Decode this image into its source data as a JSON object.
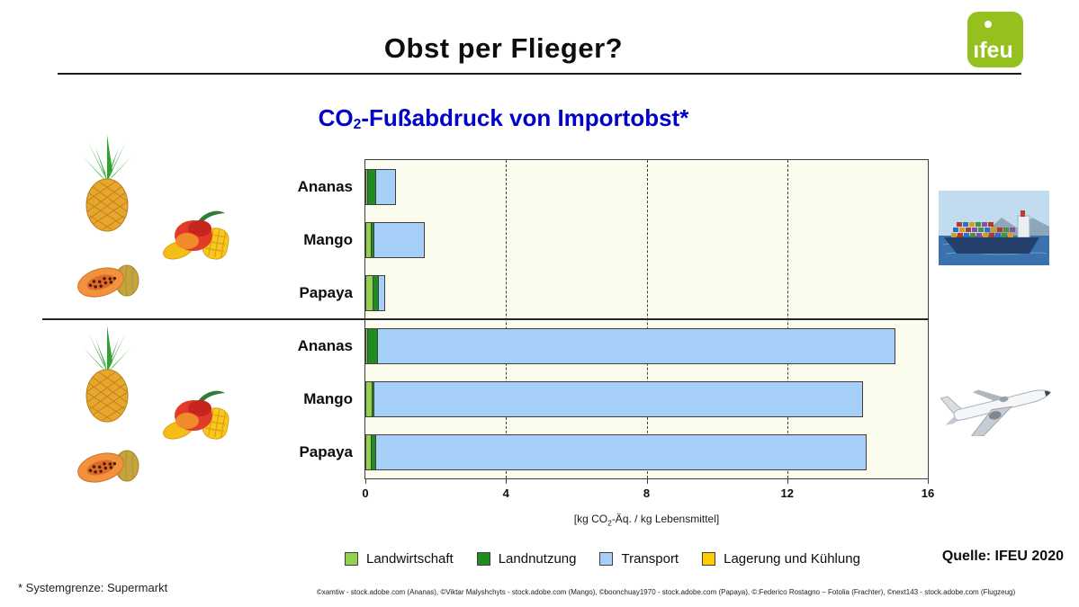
{
  "header": {
    "title": "Obst per Flieger?",
    "logo": {
      "text": "ifeu",
      "color": "#94C11E"
    }
  },
  "chart_title": {
    "pre": "CO",
    "sub": "2",
    "post": "-Fußabdruck von Importobst",
    "star": "*",
    "color": "#0000C8"
  },
  "chart_data": {
    "type": "bar",
    "orientation": "horizontal",
    "stacked": true,
    "title": "CO2-Fußabdruck von Importobst*",
    "xlabel": "[kg CO2-Äq. / kg Lebensmittel]",
    "xlabel_parts": {
      "pre": "[kg CO",
      "sub": "2",
      "post": "-Äq. / kg Lebensmittel]"
    },
    "xlim": [
      0,
      16
    ],
    "xticks": [
      "0",
      "4",
      "8",
      "12",
      "16"
    ],
    "gridlines_at": [
      4,
      8,
      12
    ],
    "grid_style": "dashed-vertical",
    "legend_position": "bottom",
    "plot_bg": "#FCFCEE",
    "series_legend": [
      {
        "name": "Landwirtschaft",
        "color": "#92D050",
        "border": "#3F3F3F"
      },
      {
        "name": "Landnutzung",
        "color": "#1E8C1E",
        "border": "#3F3F3F"
      },
      {
        "name": "Transport",
        "color": "#A6CFF7",
        "border": "#3F3F3F"
      },
      {
        "name": "Lagerung und Kühlung",
        "color": "#FFCC00",
        "border": "#3F3F3F"
      }
    ],
    "groups": [
      {
        "transport_icon": "container-ship",
        "bars": [
          {
            "label": "Ananas",
            "values": [
              0.05,
              0.25,
              0.6,
              0
            ]
          },
          {
            "label": "Mango",
            "values": [
              0.18,
              0.1,
              1.45,
              0
            ]
          },
          {
            "label": "Papaya",
            "values": [
              0.23,
              0.17,
              0.22,
              0
            ]
          }
        ]
      },
      {
        "transport_icon": "airplane",
        "bars": [
          {
            "label": "Ananas",
            "values": [
              0.05,
              0.3,
              14.75,
              0
            ]
          },
          {
            "label": "Mango",
            "values": [
              0.2,
              0.08,
              13.92,
              0
            ]
          },
          {
            "label": "Papaya",
            "values": [
              0.18,
              0.14,
              13.98,
              0
            ]
          }
        ]
      }
    ]
  },
  "footer": {
    "source": "Quelle: IFEU 2020",
    "footnote": "* Systemgrenze: Supermarkt",
    "credits": "©xamtiw - stock.adobe.com (Ananas), ©Viktar Malyshchyts - stock.adobe.com (Mango), ©boonchuay1970 - stock.adobe.com (Papaya), ©:Federico Rostagno – Fotolia (Frachter), ©next143 - stock.adobe.com (Flugzeug)"
  }
}
